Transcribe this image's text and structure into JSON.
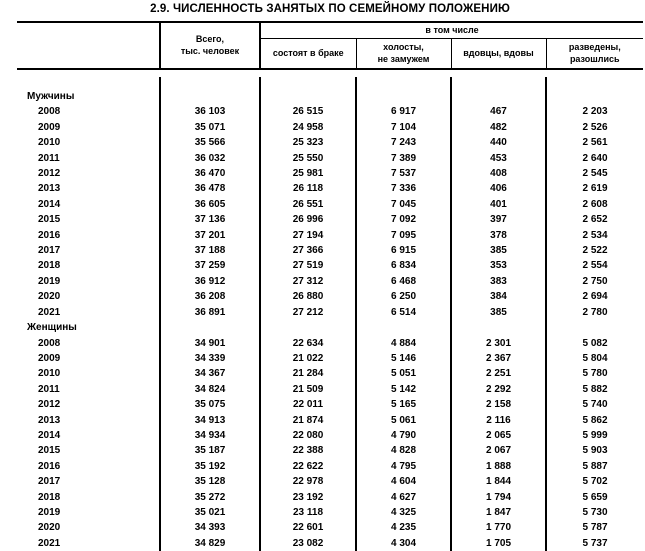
{
  "title": "2.9. ЧИСЛЕННОСТЬ ЗАНЯТЫХ ПО СЕМЕЙНОМУ ПОЛОЖЕНИЮ",
  "table": {
    "columns": {
      "total": "Всего,\nтыс. человек",
      "group": "в том числе",
      "married": "состоят в браке",
      "single": "холосты,\nне замужем",
      "widowed": "вдовцы, вдовы",
      "divorced": "разведены, разошлись"
    },
    "sections": [
      {
        "label": "Мужчины",
        "rows": [
          {
            "year": "2008",
            "values": [
              "36 103",
              "26 515",
              "6 917",
              "467",
              "2 203"
            ]
          },
          {
            "year": "2009",
            "values": [
              "35 071",
              "24 958",
              "7 104",
              "482",
              "2 526"
            ]
          },
          {
            "year": "2010",
            "values": [
              "35 566",
              "25 323",
              "7 243",
              "440",
              "2 561"
            ]
          },
          {
            "year": "2011",
            "values": [
              "36 032",
              "25 550",
              "7 389",
              "453",
              "2 640"
            ]
          },
          {
            "year": "2012",
            "values": [
              "36 470",
              "25 981",
              "7 537",
              "408",
              "2 545"
            ]
          },
          {
            "year": "2013",
            "values": [
              "36 478",
              "26 118",
              "7 336",
              "406",
              "2 619"
            ]
          },
          {
            "year": "2014",
            "values": [
              "36 605",
              "26 551",
              "7 045",
              "401",
              "2 608"
            ]
          },
          {
            "year": "2015",
            "values": [
              "37 136",
              "26 996",
              "7 092",
              "397",
              "2 652"
            ]
          },
          {
            "year": "2016",
            "values": [
              "37 201",
              "27 194",
              "7 095",
              "378",
              "2 534"
            ]
          },
          {
            "year": "2017",
            "values": [
              "37 188",
              "27 366",
              "6 915",
              "385",
              "2 522"
            ]
          },
          {
            "year": "2018",
            "values": [
              "37 259",
              "27 519",
              "6 834",
              "353",
              "2 554"
            ]
          },
          {
            "year": "2019",
            "values": [
              "36 912",
              "27 312",
              "6 468",
              "383",
              "2 750"
            ]
          },
          {
            "year": "2020",
            "values": [
              "36 208",
              "26 880",
              "6 250",
              "384",
              "2 694"
            ]
          },
          {
            "year": "2021",
            "values": [
              "36 891",
              "27 212",
              "6 514",
              "385",
              "2 780"
            ]
          }
        ]
      },
      {
        "label": "Женщины",
        "rows": [
          {
            "year": "2008",
            "values": [
              "34 901",
              "22 634",
              "4 884",
              "2 301",
              "5 082"
            ]
          },
          {
            "year": "2009",
            "values": [
              "34 339",
              "21 022",
              "5 146",
              "2 367",
              "5 804"
            ]
          },
          {
            "year": "2010",
            "values": [
              "34 367",
              "21 284",
              "5 051",
              "2 251",
              "5 780"
            ]
          },
          {
            "year": "2011",
            "values": [
              "34 824",
              "21 509",
              "5 142",
              "2 292",
              "5 882"
            ]
          },
          {
            "year": "2012",
            "values": [
              "35 075",
              "22 011",
              "5 165",
              "2 158",
              "5 740"
            ]
          },
          {
            "year": "2013",
            "values": [
              "34 913",
              "21 874",
              "5 061",
              "2 116",
              "5 862"
            ]
          },
          {
            "year": "2014",
            "values": [
              "34 934",
              "22 080",
              "4 790",
              "2 065",
              "5 999"
            ]
          },
          {
            "year": "2015",
            "values": [
              "35 187",
              "22 388",
              "4 828",
              "2 067",
              "5 903"
            ]
          },
          {
            "year": "2016",
            "values": [
              "35 192",
              "22 622",
              "4 795",
              "1 888",
              "5 887"
            ]
          },
          {
            "year": "2017",
            "values": [
              "35 128",
              "22 978",
              "4 604",
              "1 844",
              "5 702"
            ]
          },
          {
            "year": "2018",
            "values": [
              "35 272",
              "23 192",
              "4 627",
              "1 794",
              "5 659"
            ]
          },
          {
            "year": "2019",
            "values": [
              "35 021",
              "23 118",
              "4 325",
              "1 847",
              "5 730"
            ]
          },
          {
            "year": "2020",
            "values": [
              "34 393",
              "22 601",
              "4 235",
              "1 770",
              "5 787"
            ]
          },
          {
            "year": "2021",
            "values": [
              "34 829",
              "23 082",
              "4 304",
              "1 705",
              "5 737"
            ]
          }
        ]
      }
    ]
  }
}
